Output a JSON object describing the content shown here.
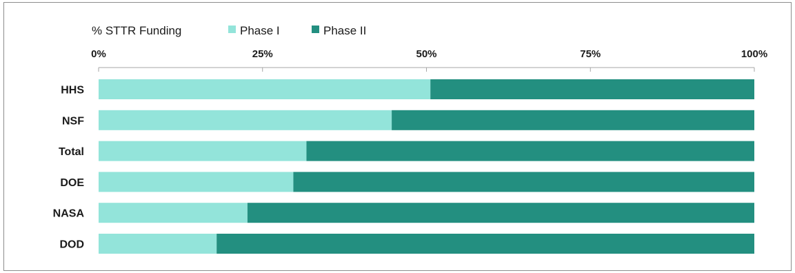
{
  "chart_data": {
    "type": "bar",
    "orientation": "horizontal",
    "stacked": true,
    "title": "% STTR Funding",
    "categories": [
      "HHS",
      "NSF",
      "Total",
      "DOE",
      "NASA",
      "DOD"
    ],
    "series": [
      {
        "name": "Phase I",
        "color": "#93e4da",
        "values": [
          50.6,
          44.7,
          31.7,
          29.7,
          22.7,
          18.0
        ]
      },
      {
        "name": "Phase II",
        "color": "#238f80",
        "values": [
          49.4,
          55.3,
          68.3,
          70.3,
          77.3,
          82.0
        ]
      }
    ],
    "xticks": [
      "0%",
      "25%",
      "50%",
      "75%",
      "100%"
    ],
    "xtick_values": [
      0,
      25,
      50,
      75,
      100
    ],
    "xlim": [
      0,
      100
    ],
    "xlabel": "",
    "ylabel": "",
    "grid": false,
    "legend_position": "top"
  }
}
